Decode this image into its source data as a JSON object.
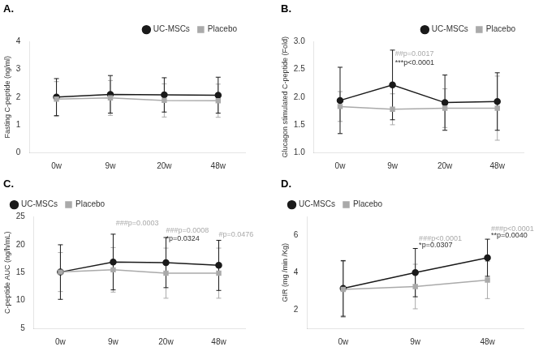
{
  "chart_data": [
    {
      "type": "line",
      "title": "A.",
      "ylabel": "Fasting C-peptide (ng/ml)",
      "categories": [
        "0w",
        "9w",
        "20w",
        "48w"
      ],
      "series": [
        {
          "name": "Placebo",
          "color": "#aaaaaa",
          "marker": "square",
          "values": [
            1.93,
            1.97,
            1.88,
            1.87
          ],
          "errors": [
            0.63,
            0.63,
            0.6,
            0.6
          ]
        },
        {
          "name": "UC-MSCs",
          "color": "#1a1a1a",
          "marker": "circle",
          "values": [
            2.0,
            2.1,
            2.08,
            2.07
          ],
          "errors": [
            0.67,
            0.68,
            0.62,
            0.65
          ]
        }
      ],
      "ylim": [
        0,
        4
      ],
      "yticks": [
        0,
        1,
        2,
        3,
        4
      ],
      "grid": false,
      "legend": "upper right",
      "annotations": []
    },
    {
      "type": "line",
      "title": "B.",
      "ylabel": "Glucagon stimulated C-peptide (Fold)",
      "categories": [
        "0w",
        "9w",
        "20w",
        "48w"
      ],
      "series": [
        {
          "name": "Placebo",
          "color": "#aaaaaa",
          "marker": "square",
          "values": [
            1.83,
            1.78,
            1.8,
            1.8
          ],
          "errors": [
            0.27,
            0.28,
            0.35,
            0.58
          ]
        },
        {
          "name": "UC-MSCs",
          "color": "#1a1a1a",
          "marker": "circle",
          "values": [
            1.94,
            2.22,
            1.9,
            1.92
          ],
          "errors": [
            0.6,
            0.63,
            0.5,
            0.52
          ]
        }
      ],
      "ylim": [
        1.0,
        3.0
      ],
      "yticks": [
        {
          "value": 1.0,
          "label": "1.0"
        },
        1.5,
        {
          "value": 2.0,
          "label": "2.0"
        },
        2.5,
        {
          "value": 3.0,
          "label": "3.0"
        }
      ],
      "grid": false,
      "legend": "upper right",
      "annotations": [
        {
          "x": 1.05,
          "y": 2.85,
          "text": "##p=0.0017",
          "color": "#aaaaaa"
        },
        {
          "x": 1.05,
          "y": 2.68,
          "text": "***p<0.0001",
          "color": "#333333"
        }
      ]
    },
    {
      "type": "line",
      "title": "C.",
      "ylabel": "C-peptide AUC (ng/h/mL)",
      "categories": [
        "0w",
        "9w",
        "20w",
        "48w"
      ],
      "series": [
        {
          "name": "Placebo",
          "color": "#aaaaaa",
          "marker": "square",
          "values": [
            15.1,
            15.5,
            14.9,
            14.9
          ],
          "errors": [
            3.5,
            4.0,
            4.5,
            4.5
          ]
        },
        {
          "name": "UC-MSCs",
          "color": "#1a1a1a",
          "marker": "circle",
          "values": [
            15.1,
            16.9,
            16.8,
            16.3
          ],
          "errors": [
            4.9,
            5.0,
            4.5,
            4.5
          ]
        }
      ],
      "ylim": [
        5,
        25
      ],
      "yticks": [
        5,
        10,
        15,
        20,
        25
      ],
      "grid": false,
      "legend": "upper left",
      "annotations": [
        {
          "x": 1.05,
          "y": 24.5,
          "text": "###p=0.0003",
          "color": "#aaaaaa"
        },
        {
          "x": 2.0,
          "y": 23.2,
          "text": "###p=0.0008",
          "color": "#aaaaaa"
        },
        {
          "x": 2.0,
          "y": 21.8,
          "text": "*p=0.0324",
          "color": "#333333"
        },
        {
          "x": 3.0,
          "y": 22.5,
          "text": "#p=0.0476",
          "color": "#aaaaaa"
        }
      ]
    },
    {
      "type": "line",
      "title": "D.",
      "ylabel": "GIR (mg /min /Kg)",
      "categories": [
        "0w",
        "9w",
        "48w"
      ],
      "series": [
        {
          "name": "Placebo",
          "color": "#aaaaaa",
          "marker": "square",
          "values": [
            3.1,
            3.25,
            3.6
          ],
          "errors": [
            1.5,
            1.2,
            1.0
          ]
        },
        {
          "name": "UC-MSCs",
          "color": "#1a1a1a",
          "marker": "circle",
          "values": [
            3.15,
            4.0,
            4.8
          ],
          "errors": [
            1.5,
            1.3,
            1.0
          ]
        }
      ],
      "ylim": [
        1,
        7
      ],
      "yticks": [
        2,
        4,
        6
      ],
      "grid": false,
      "legend": "upper left",
      "annotations": [
        {
          "x": 1.05,
          "y": 6.0,
          "text": "###p<0.0001",
          "color": "#aaaaaa"
        },
        {
          "x": 1.05,
          "y": 5.65,
          "text": "*p=0.0307",
          "color": "#333333"
        },
        {
          "x": 2.05,
          "y": 6.55,
          "text": "###p<0.0001",
          "color": "#aaaaaa"
        },
        {
          "x": 2.05,
          "y": 6.2,
          "text": "**p=0.0040",
          "color": "#333333"
        }
      ]
    }
  ]
}
